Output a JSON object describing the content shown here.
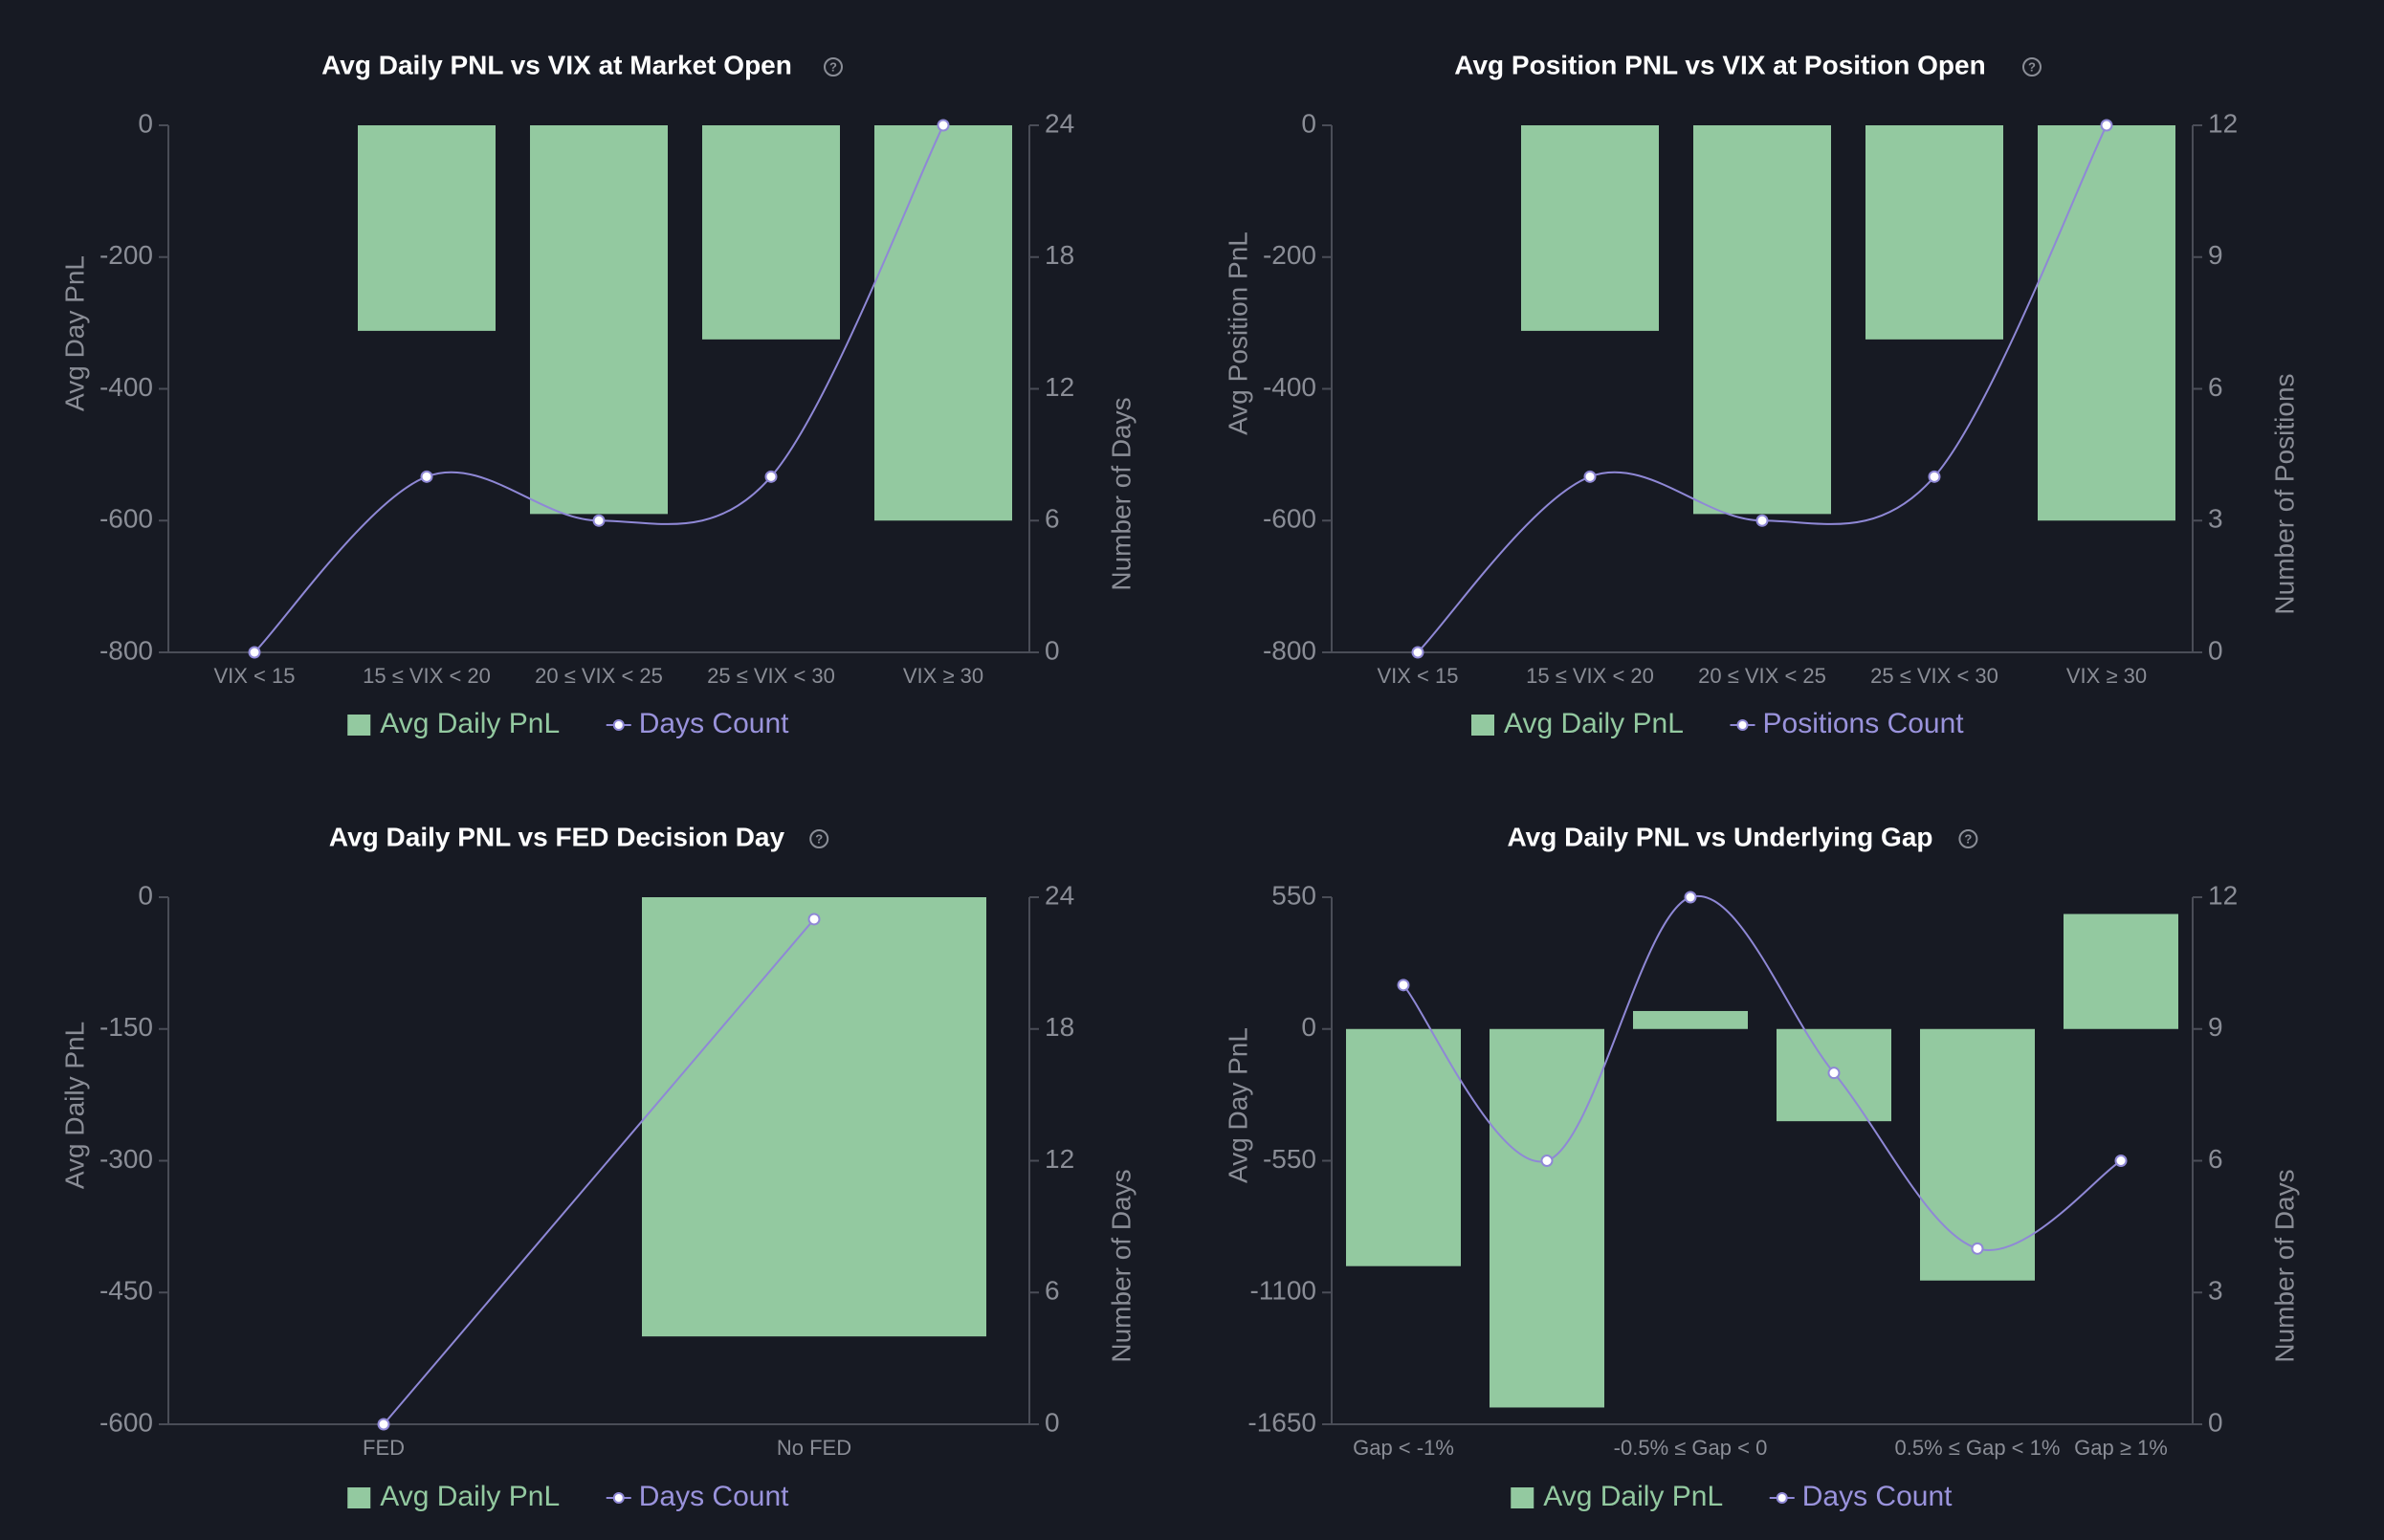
{
  "colors": {
    "background": "#171a23",
    "bar": "#93c9a0",
    "line": "#8f88d6",
    "axis": "#4a4d57",
    "tick_text": "#8a8d96",
    "title": "#ffffff"
  },
  "chart_data": [
    {
      "type": "bar",
      "title": "Avg Daily PNL vs VIX at Market Open",
      "help_icon": "question-circle-icon",
      "categories": [
        "VIX < 15",
        "15 ≤ VIX < 20",
        "20 ≤ VIX < 25",
        "25 ≤ VIX < 30",
        "VIX ≥ 30"
      ],
      "ylabel": "Avg Day PnL",
      "ylim": [
        -800,
        0
      ],
      "yticks": [
        0,
        -200,
        -400,
        -600,
        -800
      ],
      "y2label": "Number of Days",
      "y2lim": [
        0,
        24
      ],
      "y2ticks": [
        24,
        18,
        12,
        6,
        0
      ],
      "series": [
        {
          "name": "Avg Daily PnL",
          "kind": "bar",
          "axis": "left",
          "values": [
            0,
            -312,
            -590,
            -325,
            -600
          ]
        },
        {
          "name": "Days Count",
          "kind": "line",
          "axis": "right",
          "smooth": true,
          "values": [
            0,
            8,
            6,
            8,
            24
          ]
        }
      ],
      "legend": "bottom-center",
      "grid": false
    },
    {
      "type": "bar",
      "title": "Avg Position PNL vs VIX at Position Open",
      "help_icon": "question-circle-icon",
      "categories": [
        "VIX < 15",
        "15 ≤ VIX < 20",
        "20 ≤ VIX < 25",
        "25 ≤ VIX < 30",
        "VIX ≥ 30"
      ],
      "ylabel": "Avg Position PnL",
      "ylim": [
        -800,
        0
      ],
      "yticks": [
        0,
        -200,
        -400,
        -600,
        -800
      ],
      "y2label": "Number of Positions",
      "y2lim": [
        0,
        12
      ],
      "y2ticks": [
        12,
        9,
        6,
        3,
        0
      ],
      "series": [
        {
          "name": "Avg Daily PnL",
          "kind": "bar",
          "axis": "left",
          "values": [
            0,
            -312,
            -590,
            -325,
            -600
          ]
        },
        {
          "name": "Positions Count",
          "kind": "line",
          "axis": "right",
          "smooth": true,
          "values": [
            0,
            4,
            3,
            4,
            12
          ]
        }
      ],
      "legend": "bottom-center",
      "grid": false
    },
    {
      "type": "bar",
      "title": "Avg Daily PNL vs FED Decision Day",
      "help_icon": "question-circle-icon",
      "categories": [
        "FED",
        "No FED"
      ],
      "ylabel": "Avg Daily PnL",
      "ylim": [
        -600,
        0
      ],
      "yticks": [
        0,
        -150,
        -300,
        -450,
        -600
      ],
      "y2label": "Number of Days",
      "y2lim": [
        0,
        24
      ],
      "y2ticks": [
        24,
        18,
        12,
        6,
        0
      ],
      "series": [
        {
          "name": "Avg Daily PnL",
          "kind": "bar",
          "axis": "left",
          "values": [
            0,
            -500
          ]
        },
        {
          "name": "Days Count",
          "kind": "line",
          "axis": "right",
          "smooth": false,
          "values": [
            0,
            23
          ]
        }
      ],
      "legend": "bottom-center",
      "grid": false
    },
    {
      "type": "bar",
      "title": "Avg Daily PNL vs Underlying Gap",
      "help_icon": "question-circle-icon",
      "categories": [
        "Gap < -1%",
        "",
        "-0.5% ≤ Gap < 0",
        "",
        "0.5% ≤ Gap < 1%",
        "Gap ≥ 1%"
      ],
      "ylabel": "Avg Day PnL",
      "ylim": [
        -1650,
        550
      ],
      "yticks": [
        550,
        0,
        -550,
        -1100,
        -1650
      ],
      "y2label": "Number of Days",
      "y2lim": [
        0,
        12
      ],
      "y2ticks": [
        12,
        9,
        6,
        3,
        0
      ],
      "series": [
        {
          "name": "Avg Daily PnL",
          "kind": "bar",
          "axis": "left",
          "values": [
            -990,
            -1580,
            75,
            -385,
            -1050,
            480
          ]
        },
        {
          "name": "Days Count",
          "kind": "line",
          "axis": "right",
          "smooth": true,
          "values": [
            10,
            6,
            12,
            8,
            4,
            6
          ]
        }
      ],
      "legend": "bottom-center",
      "grid": false
    }
  ]
}
